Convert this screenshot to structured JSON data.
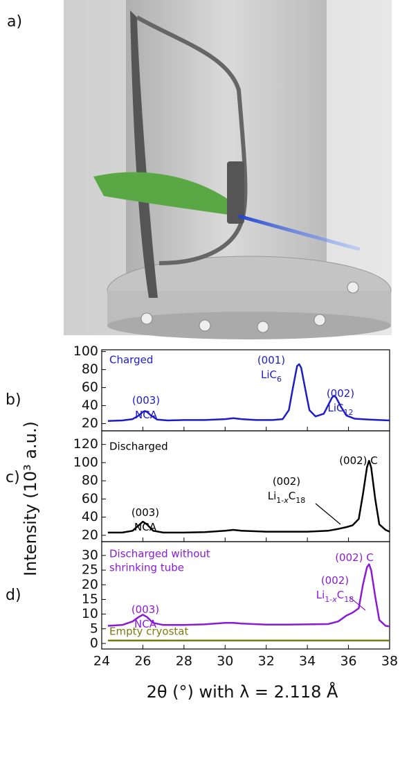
{
  "panel_a": {
    "label": "a)"
  },
  "axes": {
    "xlabel": "2θ (°) with λ = 2.118 Å",
    "ylabel": "Intensity (10³ a.u.)"
  },
  "chart_data": [
    {
      "type": "line",
      "label": "b)",
      "xlim": [
        24,
        38
      ],
      "xticks": [
        24,
        26,
        28,
        30,
        32,
        34,
        36,
        38
      ],
      "ylim": [
        12,
        102
      ],
      "yticks": [
        20,
        40,
        60,
        80,
        100
      ],
      "series": [
        {
          "name": "Charged",
          "color": "#1c1cc8",
          "x": [
            24.3,
            25.0,
            25.5,
            25.8,
            26.0,
            26.1,
            26.2,
            26.4,
            26.7,
            27.2,
            28,
            29,
            30,
            30.4,
            30.8,
            31.5,
            32.3,
            32.8,
            33.1,
            33.3,
            33.5,
            33.6,
            33.7,
            33.9,
            34.1,
            34.4,
            34.8,
            35.0,
            35.2,
            35.3,
            35.4,
            35.6,
            35.9,
            36.3,
            37,
            38
          ],
          "values": [
            23,
            23.5,
            25,
            29,
            33,
            34,
            33,
            29,
            24.5,
            23.5,
            24,
            24,
            25,
            26,
            25,
            24,
            24,
            25,
            35,
            60,
            84,
            86,
            82,
            58,
            35,
            28,
            31,
            40,
            49,
            51,
            49,
            40,
            29,
            25.5,
            24.5,
            23.5
          ]
        }
      ],
      "annotations": [
        {
          "lines": [
            [
              {
                "text": "(003)"
              }
            ],
            [
              {
                "text": "NCA"
              }
            ]
          ]
        },
        {
          "lines": [
            [
              {
                "text": "(001)"
              }
            ],
            [
              {
                "text": "LiC"
              },
              {
                "text": "6",
                "sub": true
              }
            ]
          ]
        },
        {
          "lines": [
            [
              {
                "text": "(002)"
              }
            ],
            [
              {
                "text": "LiC"
              },
              {
                "text": "12",
                "sub": true
              }
            ]
          ]
        }
      ]
    },
    {
      "type": "line",
      "label": "c)",
      "xlim": [
        24,
        38
      ],
      "xticks": [
        24,
        26,
        28,
        30,
        32,
        34,
        36,
        38
      ],
      "ylim": [
        13,
        135
      ],
      "yticks": [
        20,
        40,
        60,
        80,
        100,
        120
      ],
      "series": [
        {
          "name": "Discharged",
          "color": "#000000",
          "x": [
            24.3,
            25.0,
            25.5,
            25.8,
            26.0,
            26.2,
            26.5,
            27,
            28,
            29,
            30,
            30.4,
            30.8,
            32,
            33,
            34,
            35,
            35.5,
            35.9,
            36.2,
            36.5,
            36.7,
            36.9,
            37.0,
            37.1,
            37.3,
            37.5,
            37.8,
            38
          ],
          "values": [
            23,
            23,
            25,
            31,
            35,
            32,
            25,
            23,
            23,
            23.5,
            25,
            26,
            25,
            24,
            24,
            24,
            25,
            27,
            29,
            31,
            38,
            65,
            95,
            102,
            95,
            60,
            32,
            26,
            24
          ]
        }
      ],
      "annotations": [
        {
          "lines": [
            [
              {
                "text": "(003)"
              }
            ],
            [
              {
                "text": "NCA"
              }
            ]
          ]
        },
        {
          "lines": [
            [
              {
                "text": "(002)"
              }
            ],
            [
              {
                "text": "Li"
              },
              {
                "text": "1-",
                "sub": true
              },
              {
                "text": "x",
                "sub": true,
                "italic": true
              },
              {
                "text": "C"
              },
              {
                "text": "18",
                "sub": true
              }
            ]
          ]
        },
        {
          "lines": [
            [
              {
                "text": "(002) C"
              }
            ]
          ]
        }
      ]
    },
    {
      "type": "line",
      "label": "d)",
      "xlim": [
        24,
        38
      ],
      "xticks": [
        24,
        26,
        28,
        30,
        32,
        34,
        36,
        38
      ],
      "ylim": [
        -1.9,
        34.7
      ],
      "yticks": [
        0,
        5,
        10,
        15,
        20,
        25,
        30
      ],
      "series": [
        {
          "name": [
            "Discharged without",
            "shrinking tube"
          ],
          "color": "#8a1ad6",
          "x": [
            24.3,
            25.0,
            25.5,
            25.8,
            26.0,
            26.2,
            26.5,
            27,
            28,
            29,
            30,
            30.4,
            30.8,
            32,
            33,
            34,
            35,
            35.5,
            35.9,
            36.2,
            36.5,
            36.7,
            36.9,
            37.0,
            37.1,
            37.3,
            37.5,
            37.8,
            38
          ],
          "values": [
            6,
            6.3,
            7.5,
            9,
            9.8,
            9,
            7,
            6.3,
            6.3,
            6.5,
            7,
            7,
            6.8,
            6.4,
            6.4,
            6.5,
            6.6,
            7.5,
            9.5,
            10.5,
            12,
            20,
            26,
            27,
            25,
            16,
            8,
            6,
            5.8
          ]
        },
        {
          "name": "Empty cryostat",
          "color": "#7a7a10",
          "x": [
            24.3,
            26,
            28,
            30,
            32,
            34,
            36,
            38
          ],
          "values": [
            1,
            1,
            1,
            1,
            1,
            1,
            1,
            1
          ]
        }
      ],
      "annotations": [
        {
          "lines": [
            [
              {
                "text": "(003)"
              }
            ],
            [
              {
                "text": "NCA"
              }
            ]
          ]
        },
        {
          "lines": [
            [
              {
                "text": "(002)"
              }
            ],
            [
              {
                "text": "Li"
              },
              {
                "text": "1-",
                "sub": true
              },
              {
                "text": "x",
                "sub": true,
                "italic": true
              },
              {
                "text": "C"
              },
              {
                "text": "18",
                "sub": true
              }
            ]
          ]
        },
        {
          "lines": [
            [
              {
                "text": "(002) C"
              }
            ]
          ]
        }
      ]
    }
  ]
}
